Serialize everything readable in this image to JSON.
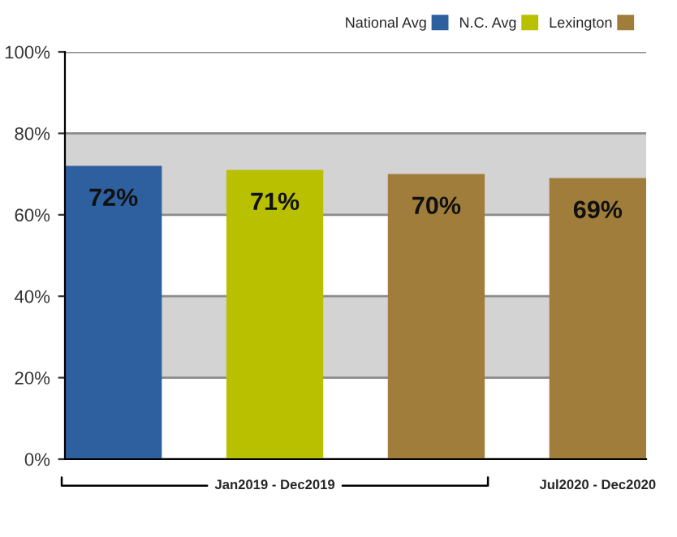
{
  "chart_data": {
    "type": "bar",
    "categories": [
      null,
      null,
      null,
      null
    ],
    "series": [
      {
        "name": "National Avg",
        "color": "#2e5f9e",
        "values": [
          72,
          null,
          null,
          null
        ],
        "value_labels": [
          "72%",
          null,
          null,
          null
        ]
      },
      {
        "name": "N.C. Avg",
        "color": "#b8c000",
        "values": [
          null,
          71,
          null,
          null
        ],
        "value_labels": [
          null,
          "71%",
          null,
          null
        ]
      },
      {
        "name": "Lexington",
        "color": "#a07d3a",
        "values": [
          null,
          null,
          70,
          69
        ],
        "value_labels": [
          null,
          null,
          "70%",
          "69%"
        ]
      }
    ],
    "ylim": [
      0,
      100
    ],
    "yticks": [
      {
        "value": 0,
        "label": "0%"
      },
      {
        "value": 20,
        "label": "20%"
      },
      {
        "value": 40,
        "label": "40%"
      },
      {
        "value": 60,
        "label": "60%"
      },
      {
        "value": 80,
        "label": "80%"
      },
      {
        "value": 100,
        "label": "100%"
      }
    ],
    "bands": [
      {
        "axis": "y",
        "from": 20,
        "to": 40,
        "color": "#d3d3d3"
      },
      {
        "axis": "y",
        "from": 60,
        "to": 80,
        "color": "#d3d3d3"
      }
    ],
    "grid": "y",
    "legend": "top right",
    "annotations": [
      "Jan2019 - Dec2019",
      "Jul2020 - Dec2020"
    ]
  }
}
